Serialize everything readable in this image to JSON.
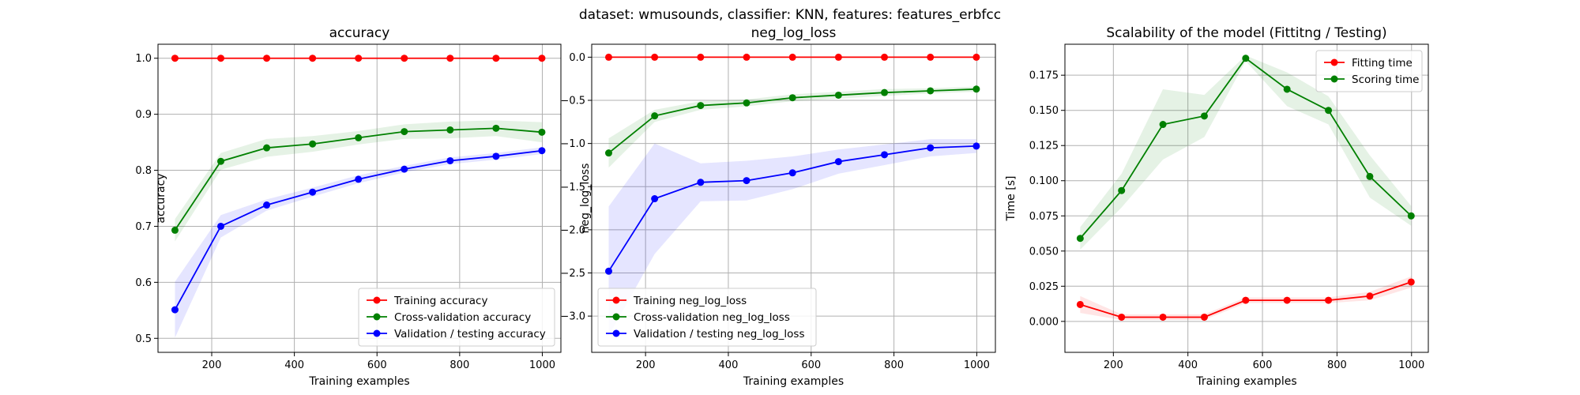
{
  "figure": {
    "suptitle": "dataset: wmusounds, classifier: KNN, features: features_erbfcc"
  },
  "chart_data": [
    {
      "type": "line",
      "title": "accuracy",
      "xlabel": "Training examples",
      "ylabel": "accuracy",
      "xlim": [
        70,
        1045
      ],
      "ylim": [
        0.475,
        1.025
      ],
      "xticks": [
        200,
        400,
        600,
        800,
        1000
      ],
      "yticks": [
        0.5,
        0.6,
        0.7,
        0.8,
        0.9,
        1.0
      ],
      "ytick_labels": [
        "0.5",
        "0.6",
        "0.7",
        "0.8",
        "0.9",
        "1.0"
      ],
      "grid": true,
      "legend_position": "lower-right",
      "x": [
        111,
        222,
        333,
        444,
        555,
        666,
        777,
        888,
        999
      ],
      "series": [
        {
          "name": "Training accuracy",
          "color": "#ff0000",
          "values": [
            1.0,
            1.0,
            1.0,
            1.0,
            1.0,
            1.0,
            1.0,
            1.0,
            1.0
          ],
          "band": [
            0,
            0,
            0,
            0,
            0,
            0,
            0,
            0,
            0
          ]
        },
        {
          "name": "Cross-validation accuracy",
          "color": "#008000",
          "values": [
            0.693,
            0.816,
            0.84,
            0.847,
            0.858,
            0.869,
            0.872,
            0.875,
            0.868
          ],
          "band": [
            0.02,
            0.015,
            0.016,
            0.014,
            0.012,
            0.013,
            0.015,
            0.014,
            0.018
          ]
        },
        {
          "name": "Validation / testing accuracy",
          "color": "#0000ff",
          "values": [
            0.551,
            0.7,
            0.738,
            0.761,
            0.784,
            0.802,
            0.817,
            0.825,
            0.835
          ],
          "band": [
            0.05,
            0.02,
            0.01,
            0.008,
            0.007,
            0.006,
            0.006,
            0.006,
            0.006
          ]
        }
      ]
    },
    {
      "type": "line",
      "title": "neg_log_loss",
      "xlabel": "Training examples",
      "ylabel": "neg_log_loss",
      "xlim": [
        70,
        1045
      ],
      "ylim": [
        -3.42,
        0.15
      ],
      "xticks": [
        200,
        400,
        600,
        800,
        1000
      ],
      "yticks": [
        0.0,
        -0.5,
        -1.0,
        -1.5,
        -2.0,
        -2.5,
        -3.0
      ],
      "ytick_labels": [
        "0.0",
        "−0.5",
        "−1.0",
        "−1.5",
        "−2.0",
        "−2.5",
        "−3.0"
      ],
      "grid": true,
      "legend_position": "lower-left",
      "x": [
        111,
        222,
        333,
        444,
        555,
        666,
        777,
        888,
        999
      ],
      "series": [
        {
          "name": "Training neg_log_loss",
          "color": "#ff0000",
          "values": [
            0.0,
            0.0,
            0.0,
            0.0,
            0.0,
            0.0,
            0.0,
            0.0,
            0.0
          ],
          "band": [
            0,
            0,
            0,
            0,
            0,
            0,
            0,
            0,
            0
          ]
        },
        {
          "name": "Cross-validation neg_log_loss",
          "color": "#008000",
          "values": [
            -1.11,
            -0.68,
            -0.56,
            -0.53,
            -0.47,
            -0.44,
            -0.41,
            -0.39,
            -0.37
          ],
          "band": [
            0.17,
            0.07,
            0.05,
            0.04,
            0.04,
            0.04,
            0.04,
            0.03,
            0.03
          ]
        },
        {
          "name": "Validation / testing neg_log_loss",
          "color": "#0000ff",
          "values": [
            -2.48,
            -1.64,
            -1.45,
            -1.43,
            -1.34,
            -1.21,
            -1.13,
            -1.05,
            -1.03
          ],
          "band": [
            0.75,
            0.64,
            0.22,
            0.23,
            0.19,
            0.14,
            0.12,
            0.1,
            0.08
          ]
        }
      ]
    },
    {
      "type": "line",
      "title": "Scalability of the model (Fittitng / Testing)",
      "xlabel": "Training examples",
      "ylabel": "Time [s]",
      "xlim": [
        70,
        1045
      ],
      "ylim": [
        -0.022,
        0.197
      ],
      "xticks": [
        200,
        400,
        600,
        800,
        1000
      ],
      "yticks": [
        0.0,
        0.025,
        0.05,
        0.075,
        0.1,
        0.125,
        0.15,
        0.175
      ],
      "ytick_labels": [
        "0.000",
        "0.025",
        "0.050",
        "0.075",
        "0.100",
        "0.125",
        "0.150",
        "0.175"
      ],
      "grid": true,
      "legend_position": "top-right",
      "x": [
        111,
        222,
        333,
        444,
        555,
        666,
        777,
        888,
        999
      ],
      "series": [
        {
          "name": "Fitting time",
          "color": "#ff0000",
          "values": [
            0.012,
            0.003,
            0.003,
            0.003,
            0.015,
            0.015,
            0.015,
            0.018,
            0.028
          ],
          "band": [
            0.006,
            0.002,
            0.002,
            0.002,
            0.002,
            0.002,
            0.002,
            0.003,
            0.004
          ]
        },
        {
          "name": "Scoring time",
          "color": "#008000",
          "values": [
            0.059,
            0.093,
            0.14,
            0.146,
            0.187,
            0.165,
            0.15,
            0.103,
            0.075
          ],
          "band": [
            0.008,
            0.012,
            0.025,
            0.015,
            0.002,
            0.012,
            0.01,
            0.015,
            0.007
          ]
        }
      ]
    }
  ]
}
